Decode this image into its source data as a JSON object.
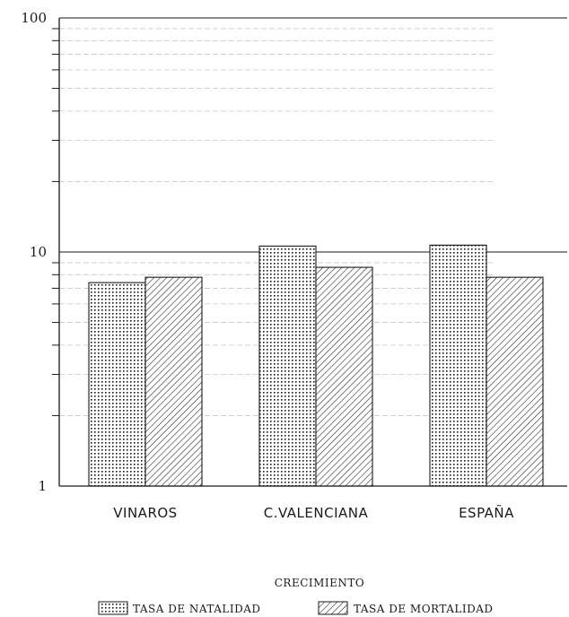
{
  "chart_data": {
    "type": "bar",
    "title": "CRECIMIENTO",
    "xlabel": "",
    "ylabel": "",
    "y_scale": "log",
    "ylim": [
      1,
      100
    ],
    "y_ticks": [
      "1",
      "10",
      "100"
    ],
    "grid": true,
    "legend_position": "bottom",
    "categories": [
      "VINAROS",
      "C.VALENCIANA",
      "ESPAÑA"
    ],
    "series": [
      {
        "name": "TASA DE NATALIDAD",
        "pattern": "dots",
        "values": [
          7.4,
          10.6,
          10.7
        ]
      },
      {
        "name": "TASA DE MORTALIDAD",
        "pattern": "diagonal-hatch",
        "values": [
          7.8,
          8.6,
          7.8
        ]
      }
    ],
    "colors": {
      "ink": "#1a1a1a",
      "grid": "#c8c8c8",
      "background": "#ffffff"
    }
  }
}
